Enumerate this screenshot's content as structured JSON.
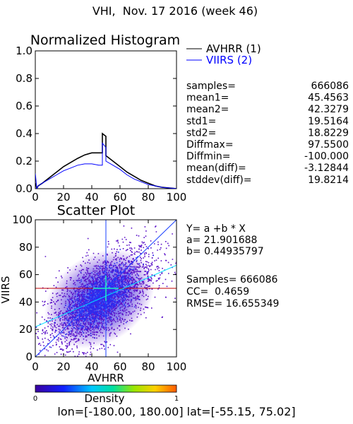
{
  "page_title": "VHI,  Nov. 17 2016 (week 46)",
  "colors": {
    "avhrr": "#000000",
    "viirs": "#0000ff",
    "mean_line": "#c00000"
  },
  "histogram": {
    "title": "Normalized Histogram",
    "legend": [
      {
        "name": "AVHRR (1)",
        "color": "#000000"
      },
      {
        "name": "VIIRS (2)",
        "color": "#0000ff"
      }
    ],
    "xticks": [
      "0",
      "20",
      "40",
      "60",
      "80",
      "100"
    ],
    "yticks": [
      "0.0",
      "0.2",
      "0.4",
      "0.6",
      "0.8",
      "1.0"
    ],
    "stats": [
      {
        "label": "samples=",
        "value": "666086"
      },
      {
        "label": "mean1=",
        "value": "45.4563"
      },
      {
        "label": "mean2=",
        "value": "42.3279"
      },
      {
        "label": "std1=",
        "value": "19.5164"
      },
      {
        "label": "std2=",
        "value": "18.8229"
      },
      {
        "label": "Diffmax=",
        "value": "97.5500"
      },
      {
        "label": "Diffmin=",
        "value": "-100.000"
      },
      {
        "label": "mean(diff)=",
        "value": "-3.12844"
      },
      {
        "label": "stddev(diff)=",
        "value": "19.8214"
      }
    ]
  },
  "scatter": {
    "title": "Scatter Plot",
    "xlabel": "AVHRR",
    "ylabel": "VIIRS",
    "xticks": [
      "0",
      "20",
      "40",
      "60",
      "80",
      "100"
    ],
    "yticks": [
      "0",
      "20",
      "40",
      "60",
      "80",
      "100"
    ],
    "regression_text": [
      "Y= a +b * X",
      "a= 21.901688",
      "b= 0.44935797"
    ],
    "summary_text": [
      "Samples= 666086",
      "CC=  0.4659",
      "RMSE= 16.655349"
    ]
  },
  "colorbar": {
    "label": "Density",
    "min_label": "0",
    "max_label": "1"
  },
  "footer": "lon=[-180.00, 180.00] lat=[-55.15, 75.02]",
  "chart_data": [
    {
      "type": "line",
      "title": "Normalized Histogram",
      "xlabel": "",
      "ylabel": "",
      "xlim": [
        0,
        100
      ],
      "ylim": [
        0,
        1.0
      ],
      "grid": false,
      "legend_position": "top-right outside",
      "series": [
        {
          "name": "AVHRR (1)",
          "x": [
            0,
            0.5,
            1,
            2,
            5,
            10,
            15,
            20,
            25,
            30,
            35,
            40,
            43,
            45,
            47.5,
            47.5,
            50,
            50,
            55,
            60,
            65,
            70,
            75,
            80,
            85,
            90,
            95,
            98,
            100
          ],
          "y": [
            0.04,
            0.03,
            0.0,
            0.02,
            0.04,
            0.08,
            0.12,
            0.16,
            0.19,
            0.22,
            0.245,
            0.26,
            0.26,
            0.26,
            0.26,
            0.4,
            0.38,
            0.24,
            0.2,
            0.16,
            0.12,
            0.09,
            0.06,
            0.04,
            0.02,
            0.01,
            0.005,
            0.002,
            0.0
          ]
        },
        {
          "name": "VIIRS (2)",
          "x": [
            0,
            0.5,
            1,
            2,
            5,
            10,
            15,
            20,
            25,
            30,
            35,
            40,
            45,
            47.5,
            47.5,
            50,
            50,
            55,
            60,
            65,
            70,
            75,
            80,
            85,
            90,
            95,
            98,
            100
          ],
          "y": [
            0.11,
            0.06,
            0.0,
            0.02,
            0.04,
            0.07,
            0.1,
            0.13,
            0.15,
            0.17,
            0.18,
            0.18,
            0.17,
            0.17,
            0.33,
            0.3,
            0.2,
            0.17,
            0.14,
            0.1,
            0.07,
            0.05,
            0.03,
            0.02,
            0.01,
            0.005,
            0.002,
            0.0
          ]
        }
      ]
    },
    {
      "type": "heatmap",
      "title": "Scatter Plot",
      "xlabel": "AVHRR",
      "ylabel": "VIIRS",
      "xlim": [
        0,
        100
      ],
      "ylim": [
        0,
        100
      ],
      "colorbar": {
        "label": "Density",
        "range": [
          0,
          1
        ]
      },
      "points_cloud": {
        "center": [
          45.4563,
          42.3279
        ],
        "std": [
          19.5164,
          18.8229
        ],
        "correlation": 0.4659,
        "samples": 666086
      },
      "mean_lines": {
        "x": 50,
        "y": 50
      },
      "regression_line": {
        "intercept": 21.901688,
        "slope": 0.44935797
      },
      "one_to_one_line": true
    }
  ]
}
